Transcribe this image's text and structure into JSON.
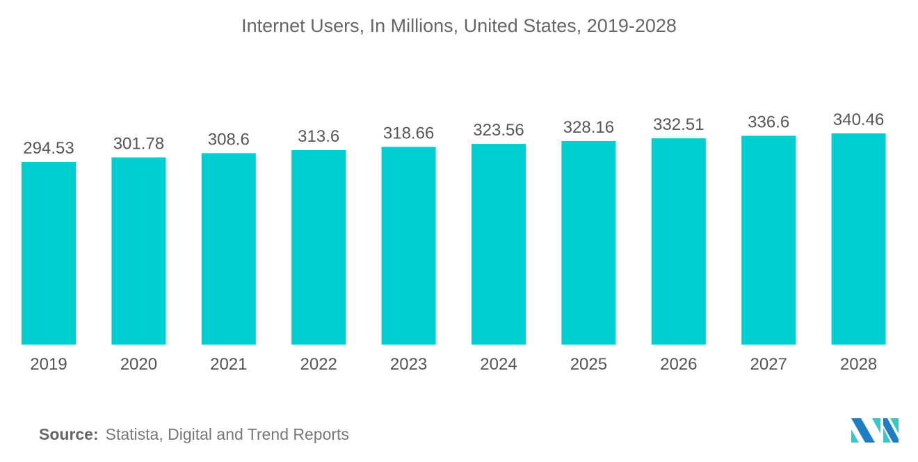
{
  "chart_data": {
    "type": "bar",
    "title": "Internet Users, In Millions, United States, 2019-2028",
    "categories": [
      "2019",
      "2020",
      "2021",
      "2022",
      "2023",
      "2024",
      "2025",
      "2026",
      "2027",
      "2028"
    ],
    "values": [
      294.53,
      301.78,
      308.6,
      313.6,
      318.66,
      323.56,
      328.16,
      332.51,
      336.6,
      340.46
    ],
    "value_labels": [
      "294.53",
      "301.78",
      "308.6",
      "313.6",
      "318.66",
      "323.56",
      "328.16",
      "332.51",
      "336.6",
      "340.46"
    ],
    "xlabel": "",
    "ylabel": "",
    "ylim": [
      0,
      340.46
    ],
    "grid": false,
    "bar_color": "#00CED1"
  },
  "source": {
    "label": "Source:",
    "text": "Statista, Digital and Trend Reports"
  },
  "logo": {
    "colors": [
      "#1F7EC2",
      "#3CC6C8"
    ]
  }
}
